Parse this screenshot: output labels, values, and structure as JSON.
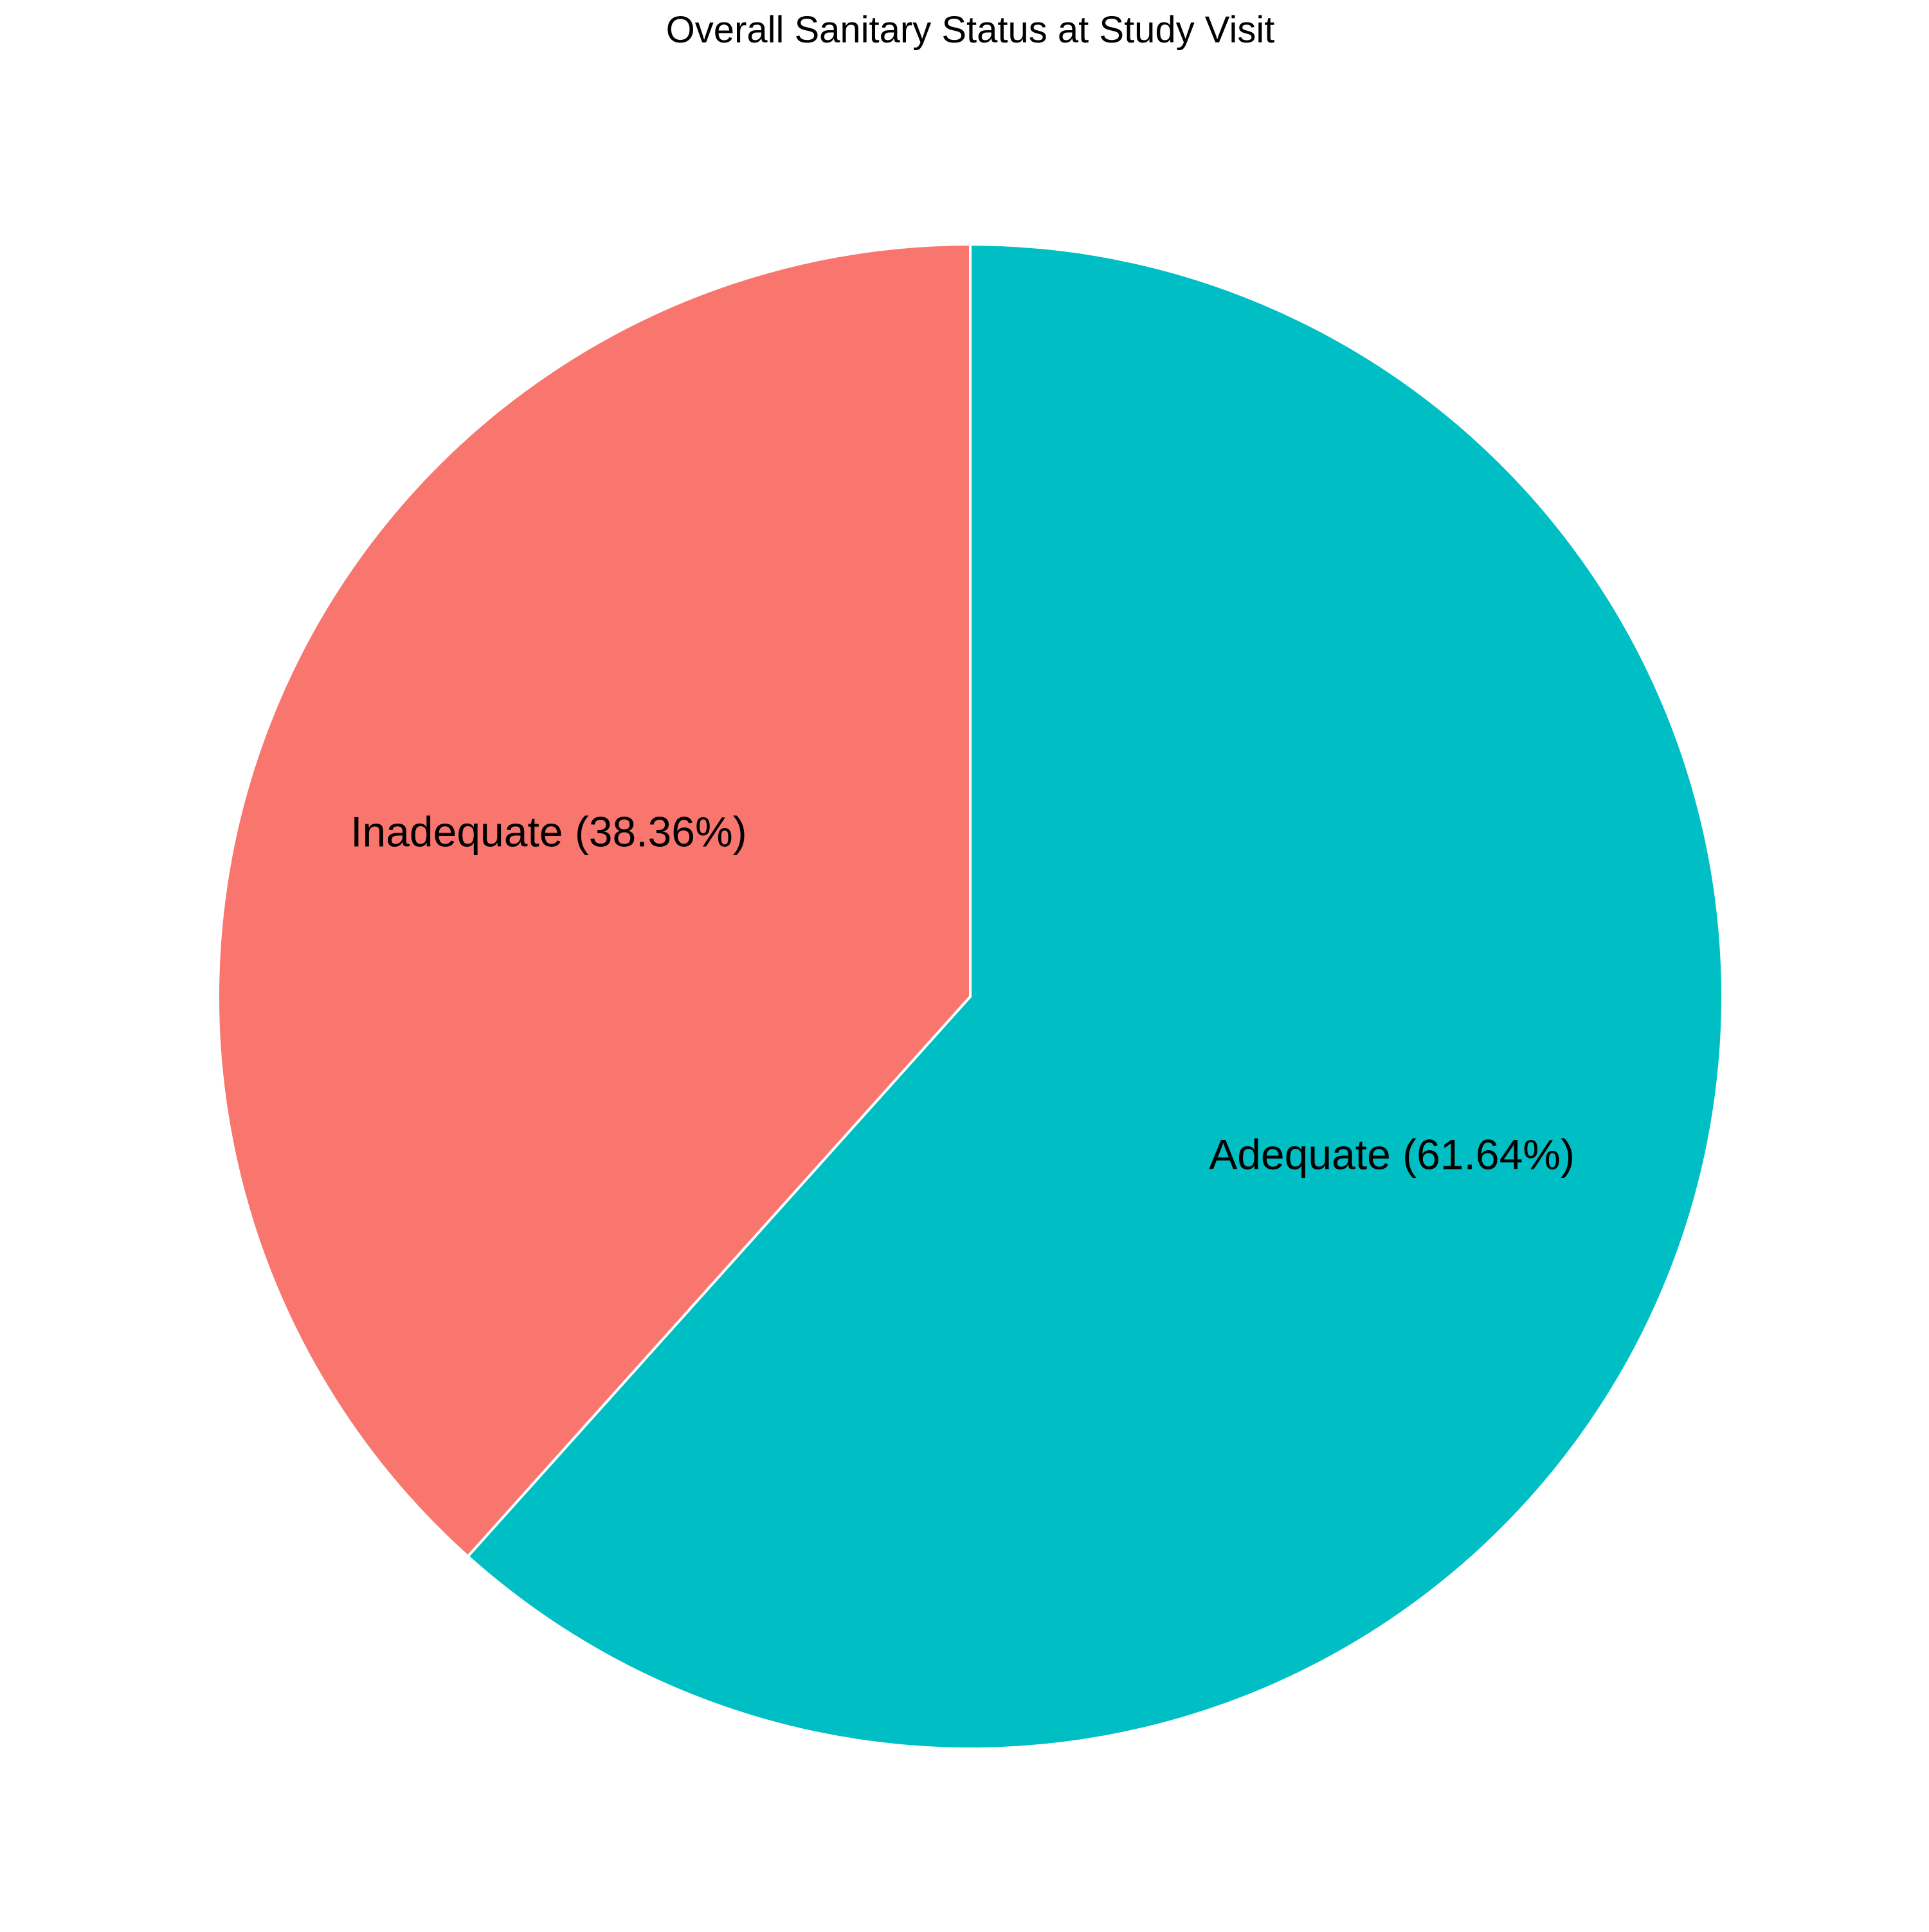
{
  "chart_data": {
    "type": "pie",
    "title": "Overall Sanitary Status at Study Visit",
    "slices": [
      {
        "label": "Adequate (61.64%)",
        "value": 61.64,
        "color": "#00BFC4"
      },
      {
        "label": "Inadequate (38.36%)",
        "value": 38.36,
        "color": "#F8766D"
      }
    ],
    "start": "top",
    "direction": "clockwise",
    "edge_color": "#FFFFFF",
    "legend": "none"
  }
}
